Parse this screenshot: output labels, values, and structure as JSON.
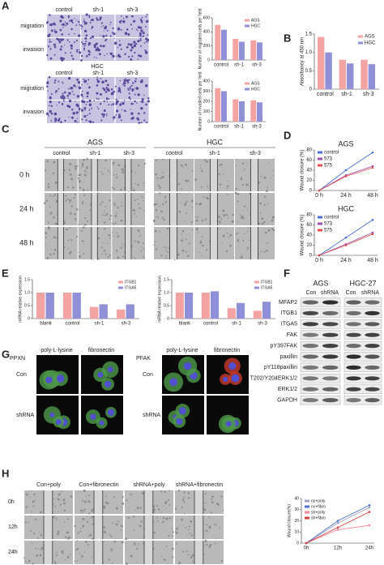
{
  "figure": {
    "panel_letters": [
      "A",
      "B",
      "C",
      "D",
      "E",
      "F",
      "G",
      "H"
    ]
  },
  "panel_a": {
    "columns": [
      "control",
      "sh-1",
      "sh-3"
    ],
    "rows": [
      "migration",
      "invasion"
    ],
    "cell_line": "HGC"
  },
  "panel_c": {
    "cell_lines": [
      "AGS",
      "HGC"
    ],
    "columns": [
      "control",
      "sh-1",
      "sh-3"
    ],
    "rows": [
      "0 h",
      "24 h",
      "48 h"
    ]
  },
  "panel_f": {
    "cell_lines": [
      "AGS",
      "HGC-27"
    ],
    "lanes": [
      "Con",
      "shRNA"
    ],
    "proteins": [
      "MFAP2",
      "ITGB1",
      "ITGA5",
      "FAK",
      "pY397FAK",
      "paxillin",
      "pY118paxillin",
      "T202/Y204ERK1/2",
      "ERK1/2",
      "GAPDH"
    ]
  },
  "panel_g": {
    "coatings": [
      "poly-L-lysine",
      "fibronectin"
    ],
    "stains": [
      "PPXN",
      "PFAK"
    ],
    "rows": [
      "Con",
      "shRNA"
    ]
  },
  "panel_h": {
    "columns": [
      "Con+poly",
      "Con+fibronectin",
      "shRNA+poly",
      "shRNA+fibronectin"
    ],
    "rows": [
      "0h",
      "12h",
      "24h"
    ]
  },
  "chart_data": [
    {
      "type": "bar",
      "y_label": "Number of migrated cells per field",
      "categories": [
        "control",
        "sh-1",
        "sh-3"
      ],
      "series": [
        {
          "name": "AGS",
          "color": "#f4a3a3",
          "values": [
            500,
            300,
            280
          ]
        },
        {
          "name": "HGC",
          "color": "#8f90d8",
          "values": [
            430,
            260,
            250
          ]
        }
      ],
      "ylim": [
        0,
        600
      ],
      "yticks": [
        0,
        200,
        400,
        600
      ],
      "legend": "upper right"
    },
    {
      "type": "bar",
      "y_label": "Number of invaded cells per field",
      "categories": [
        "control",
        "sh-1",
        "sh-3"
      ],
      "series": [
        {
          "name": "AGS",
          "color": "#f4a3a3",
          "values": [
            330,
            220,
            210
          ]
        },
        {
          "name": "HGC",
          "color": "#8f90d8",
          "values": [
            300,
            200,
            190
          ]
        }
      ],
      "ylim": [
        0,
        400
      ],
      "yticks": [
        0,
        100,
        200,
        300,
        400
      ],
      "legend": "upper right"
    },
    {
      "type": "bar",
      "y_label": "Absorbancy at 450 nm",
      "categories": [
        "control",
        "sh-1",
        "sh-3"
      ],
      "series": [
        {
          "name": "AGS",
          "color": "#f4a3a3",
          "values": [
            1.42,
            0.8,
            0.8
          ]
        },
        {
          "name": "HGC",
          "color": "#8f90d8",
          "values": [
            1.0,
            0.7,
            0.68
          ]
        }
      ],
      "ylim": [
        0,
        1.5
      ],
      "yticks": [
        0,
        0.5,
        {
          "value": 1,
          "label": "1.0"
        },
        1.5
      ],
      "legend": "upper right"
    },
    {
      "type": "line",
      "title": "AGS",
      "y_label": "Wound closure (%)",
      "categories": [
        "0 h",
        "24 h",
        "48 h"
      ],
      "series": [
        {
          "name": "control",
          "color": "#4a6fd0",
          "values": [
            0,
            40,
            75
          ]
        },
        {
          "name": "573",
          "color": "#9b4fb0",
          "values": [
            0,
            30,
            48
          ]
        },
        {
          "name": "575",
          "color": "#e05050",
          "values": [
            0,
            28,
            45
          ]
        }
      ],
      "ylim": [
        0,
        80
      ],
      "yticks": [
        0,
        20,
        40,
        60,
        80
      ],
      "legend": "upper left"
    },
    {
      "type": "line",
      "title": "HGC",
      "y_label": "Wound closure (%)",
      "categories": [
        "0 h",
        "24 h",
        "48 h"
      ],
      "series": [
        {
          "name": "control",
          "color": "#4a6fd0",
          "values": [
            0,
            35,
            70
          ]
        },
        {
          "name": "573",
          "color": "#9b4fb0",
          "values": [
            0,
            22,
            45
          ]
        },
        {
          "name": "575",
          "color": "#e05050",
          "values": [
            0,
            20,
            42
          ]
        }
      ],
      "ylim": [
        0,
        80
      ],
      "yticks": [
        0,
        20,
        40,
        60,
        80
      ],
      "legend": "upper left"
    },
    {
      "type": "bar",
      "y_label": "mRNA relative expression",
      "categories": [
        "blank",
        "control",
        "sh-1",
        "sh-3"
      ],
      "series": [
        {
          "name": "ITGB1",
          "color": "#f4a3a3",
          "values": [
            1.0,
            1.0,
            0.45,
            0.35
          ]
        },
        {
          "name": "ITGA5",
          "color": "#8f90d8",
          "values": [
            1.0,
            1.0,
            0.55,
            0.55
          ]
        }
      ],
      "ylim": [
        0,
        1.5
      ],
      "yticks": [
        0,
        0.5,
        {
          "value": 1,
          "label": "1.0"
        },
        1.5
      ],
      "legend": "upper right"
    },
    {
      "type": "bar",
      "y_label": "mRNA relative expression",
      "categories": [
        "blank",
        "control",
        "sh-1",
        "sh-3"
      ],
      "series": [
        {
          "name": "ITGB1",
          "color": "#f4a3a3",
          "values": [
            1.0,
            1.0,
            0.4,
            0.3
          ]
        },
        {
          "name": "ITGA5",
          "color": "#8f90d8",
          "values": [
            1.0,
            1.05,
            0.6,
            0.65
          ]
        }
      ],
      "ylim": [
        0,
        1.5
      ],
      "yticks": [
        0,
        0.5,
        {
          "value": 1,
          "label": "1.0"
        },
        1.5
      ],
      "legend": "upper right"
    },
    {
      "type": "line",
      "y_label": "Wound closure(%)",
      "categories": [
        "0h",
        "12h",
        "24h"
      ],
      "series": [
        {
          "name": "nc+poly",
          "color": "#a0a0c0",
          "values": [
            0,
            18,
            32
          ]
        },
        {
          "name": "nc+fibro",
          "color": "#5070d0",
          "values": [
            0,
            20,
            34
          ]
        },
        {
          "name": "sh+poly",
          "color": "#f08a9a",
          "values": [
            0,
            12,
            16
          ]
        },
        {
          "name": "sh+fibro",
          "color": "#d84040",
          "values": [
            0,
            14,
            28
          ]
        }
      ],
      "ylim": [
        0,
        40
      ],
      "yticks": [
        0,
        10,
        20,
        30,
        40
      ],
      "legend": "upper left"
    }
  ]
}
